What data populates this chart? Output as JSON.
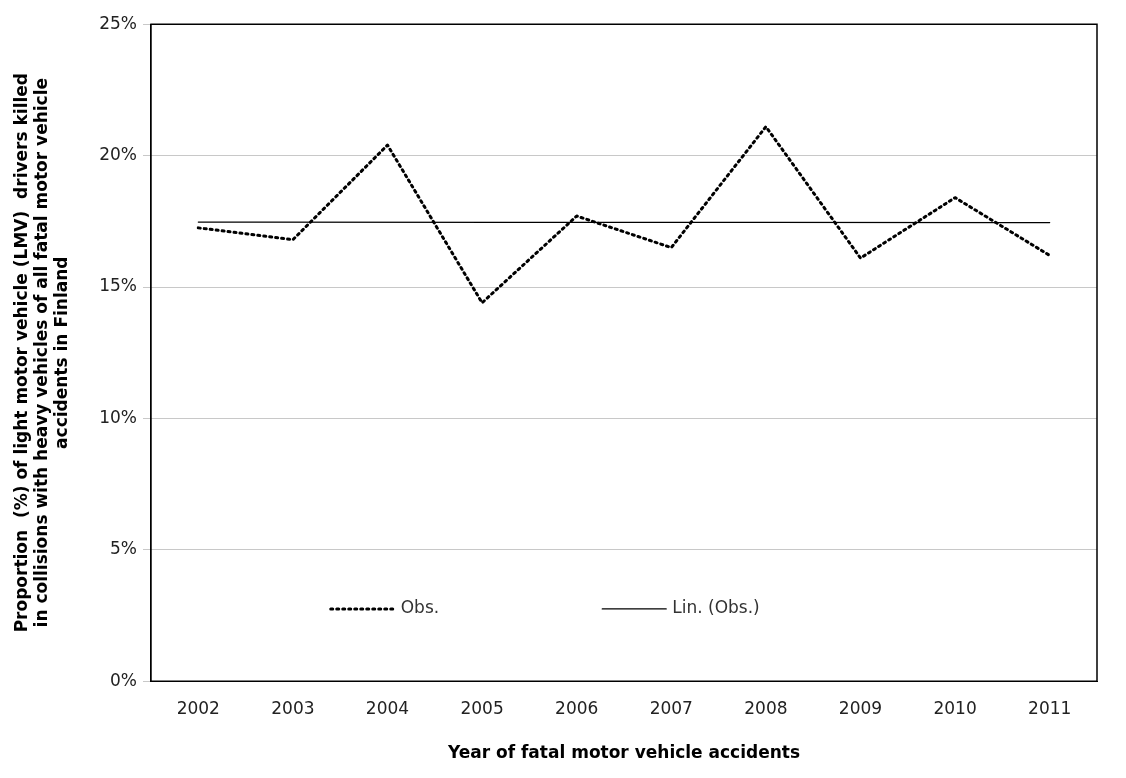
{
  "chart_data": {
    "type": "line",
    "xlabel": "Year of fatal motor vehicle accidents",
    "ylabel": "Proportion  (%) of light motor vehicle (LMV)  drivers killed\nin collisions with heavy vehicles of all fatal motor vehicle\naccidents in Finland",
    "categories": [
      "2002",
      "2003",
      "2004",
      "2005",
      "2006",
      "2007",
      "2008",
      "2009",
      "2010",
      "2011"
    ],
    "series": [
      {
        "name": "Obs.",
        "color": "#000000",
        "line_style": "dotted",
        "values": [
          17.25,
          16.8,
          20.4,
          14.4,
          17.7,
          16.5,
          21.1,
          16.1,
          18.4,
          16.2
        ]
      },
      {
        "name": "Lin. (Obs.)",
        "color": "#000000",
        "line_style": "solid",
        "values": [
          17.47,
          null,
          null,
          null,
          null,
          null,
          null,
          null,
          null,
          17.45
        ]
      }
    ],
    "ylim": [
      0,
      25
    ],
    "yticks": [
      {
        "value": 0,
        "label": "0%"
      },
      {
        "value": 5,
        "label": "5%"
      },
      {
        "value": 10,
        "label": "10%"
      },
      {
        "value": 15,
        "label": "15%"
      },
      {
        "value": 20,
        "label": "20%"
      },
      {
        "value": 25,
        "label": "25%"
      }
    ],
    "grid": "y",
    "legend": "bottom",
    "marker": "none"
  }
}
